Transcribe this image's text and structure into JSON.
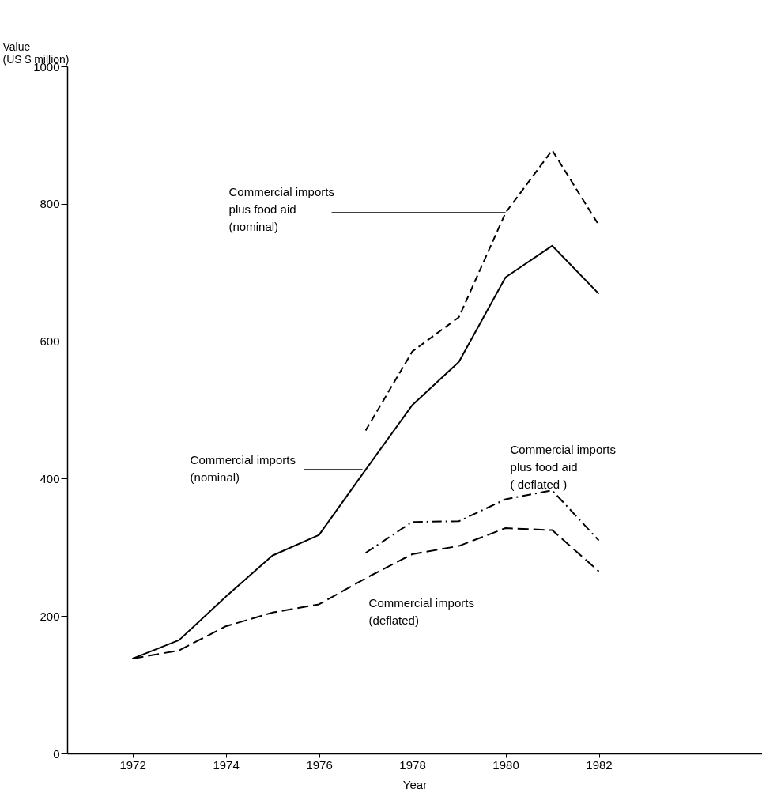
{
  "chart_data": {
    "type": "line",
    "xlabel": "Year",
    "ylabel": "Value\n(US $ million)",
    "xlim": [
      1970.6,
      1985.5
    ],
    "ylim": [
      0,
      1000
    ],
    "xticks": [
      1972,
      1974,
      1976,
      1978,
      1980,
      1982
    ],
    "yticks": [
      0,
      200,
      400,
      600,
      800,
      1000
    ],
    "grid": false,
    "marker": "none",
    "series": [
      {
        "name": "Commercial imports\n(nominal)",
        "color": "#000000",
        "line_style": "solid",
        "x": [
          1972,
          1973,
          1974,
          1975,
          1976,
          1977,
          1978,
          1979,
          1980,
          1981,
          1982
        ],
        "values": [
          138,
          165,
          228,
          288,
          318,
          413,
          507,
          570,
          693,
          739,
          669
        ]
      },
      {
        "name": "Commercial imports\nplus food aid\n(nominal)",
        "color": "#000000",
        "line_style": "dashed",
        "x": [
          1977,
          1978,
          1979,
          1980,
          1981,
          1982
        ],
        "values": [
          470,
          585,
          635,
          787,
          878,
          769
        ]
      },
      {
        "name": "Commercial imports\nplus food aid\n( deflated )",
        "color": "#000000",
        "line_style": "dashdot",
        "x": [
          1977,
          1978,
          1979,
          1980,
          1981,
          1982
        ],
        "values": [
          292,
          337,
          338,
          370,
          383,
          310
        ]
      },
      {
        "name": "Commercial imports\n(deflated)",
        "color": "#000000",
        "line_style": "longdash",
        "x": [
          1972,
          1973,
          1974,
          1975,
          1976,
          1977,
          1978,
          1979,
          1980,
          1981,
          1982
        ],
        "values": [
          138,
          150,
          185,
          205,
          217,
          255,
          290,
          302,
          328,
          325,
          265
        ]
      }
    ]
  }
}
